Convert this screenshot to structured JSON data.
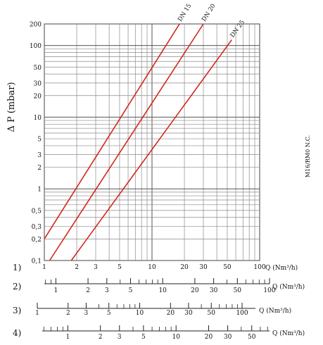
{
  "chart_data": {
    "type": "line",
    "ylabel": "Δ P (mbar)",
    "side_label": "M16/RM0 N.C.",
    "x_scale": "log",
    "y_scale": "log",
    "xlim": [
      1,
      100
    ],
    "ylim": [
      0.1,
      200
    ],
    "grid": true,
    "y_ticks": [
      {
        "value": 200,
        "label": "200"
      },
      {
        "value": 100,
        "label": "100"
      },
      {
        "value": 50,
        "label": "50"
      },
      {
        "value": 30,
        "label": "30"
      },
      {
        "value": 20,
        "label": "20"
      },
      {
        "value": 10,
        "label": "10"
      },
      {
        "value": 5,
        "label": "5"
      },
      {
        "value": 3,
        "label": "3"
      },
      {
        "value": 2,
        "label": "2"
      },
      {
        "value": 1,
        "label": "1"
      },
      {
        "value": 0.5,
        "label": "0,5"
      },
      {
        "value": 0.3,
        "label": "0,3"
      },
      {
        "value": 0.2,
        "label": "0,2"
      },
      {
        "value": 0.1,
        "label": "0,1"
      }
    ],
    "series_color": "#d2261c",
    "series": [
      {
        "name": "DN 15",
        "x": [
          1.0,
          18.0
        ],
        "y": [
          0.2,
          200
        ]
      },
      {
        "name": "DN 20",
        "x": [
          1.12,
          30.0
        ],
        "y": [
          0.1,
          200
        ]
      },
      {
        "name": "DN 25",
        "x": [
          1.78,
          55.0
        ],
        "y": [
          0.1,
          120
        ]
      }
    ],
    "scales": [
      {
        "label": "1)",
        "unit": "Q (Nm³/h)",
        "min": 1,
        "max": 100,
        "tick_labels": [
          "1",
          "2",
          "3",
          "5",
          "10",
          "20",
          "30",
          "50",
          "100"
        ]
      },
      {
        "label": "2)",
        "unit": "Q (Nm³/h)",
        "min": 0.78,
        "max": 100,
        "tick_labels": [
          "1",
          "2",
          "3",
          "5",
          "10",
          "20",
          "30",
          "50",
          "100"
        ]
      },
      {
        "label": "3)",
        "unit": "Q (Nm³/h)",
        "min": 1.0,
        "max": 135,
        "tick_labels": [
          "1",
          "2",
          "3",
          "5",
          "10",
          "20",
          "30",
          "50",
          "100"
        ]
      },
      {
        "label": "4)",
        "unit": "Q (Nm³/h)",
        "min": 0.58,
        "max": 73,
        "tick_labels": [
          "1",
          "2",
          "3",
          "5",
          "10",
          "20",
          "30",
          "50"
        ]
      }
    ]
  }
}
